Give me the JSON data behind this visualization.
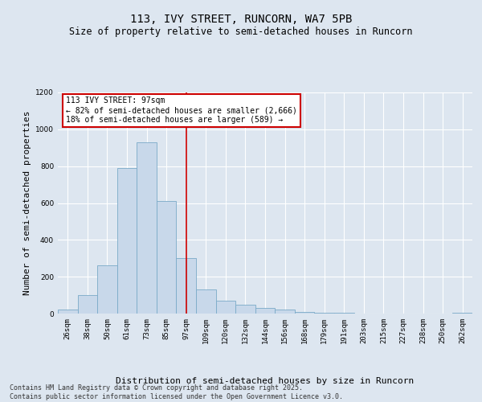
{
  "title_line1": "113, IVY STREET, RUNCORN, WA7 5PB",
  "title_line2": "Size of property relative to semi-detached houses in Runcorn",
  "xlabel": "Distribution of semi-detached houses by size in Runcorn",
  "ylabel": "Number of semi-detached properties",
  "categories": [
    "26sqm",
    "38sqm",
    "50sqm",
    "61sqm",
    "73sqm",
    "85sqm",
    "97sqm",
    "109sqm",
    "120sqm",
    "132sqm",
    "144sqm",
    "156sqm",
    "168sqm",
    "179sqm",
    "191sqm",
    "203sqm",
    "215sqm",
    "227sqm",
    "238sqm",
    "250sqm",
    "262sqm"
  ],
  "values": [
    20,
    100,
    260,
    790,
    930,
    610,
    300,
    130,
    70,
    50,
    30,
    20,
    10,
    5,
    3,
    1,
    0,
    0,
    0,
    0,
    5
  ],
  "bar_color": "#c8d8ea",
  "bar_edge_color": "#7aaac8",
  "vline_x": 6,
  "vline_color": "#cc0000",
  "annotation_text": "113 IVY STREET: 97sqm\n← 82% of semi-detached houses are smaller (2,666)\n18% of semi-detached houses are larger (589) →",
  "annotation_box_facecolor": "#ffffff",
  "annotation_box_edgecolor": "#cc0000",
  "ylim": [
    0,
    1200
  ],
  "yticks": [
    0,
    200,
    400,
    600,
    800,
    1000,
    1200
  ],
  "footer_text": "Contains HM Land Registry data © Crown copyright and database right 2025.\nContains public sector information licensed under the Open Government Licence v3.0.",
  "background_color": "#dde6f0",
  "plot_bg_color": "#dde6f0",
  "grid_color": "#ffffff",
  "title_fontsize": 10,
  "subtitle_fontsize": 8.5,
  "axis_label_fontsize": 8,
  "tick_fontsize": 6.5,
  "annotation_fontsize": 7,
  "footer_fontsize": 6
}
